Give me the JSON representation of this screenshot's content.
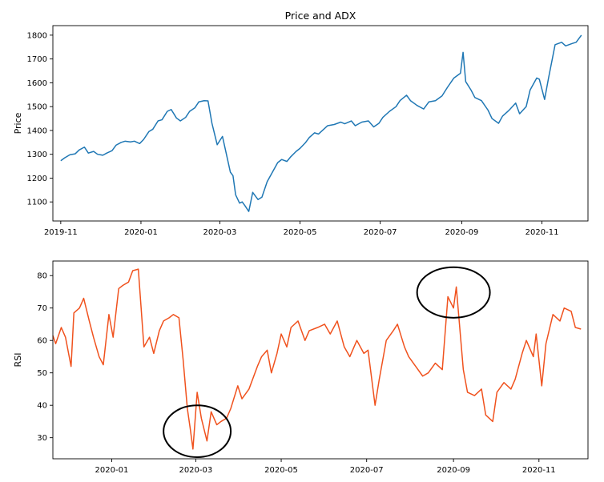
{
  "figure": {
    "background": "#ffffff"
  },
  "chart_data": [
    {
      "type": "line",
      "title": "Price and ADX",
      "xlabel": "",
      "ylabel": "Price",
      "color": "#1f77b4",
      "xlim": [
        "2019-10-26",
        "2020-12-06"
      ],
      "ylim": [
        1020,
        1840
      ],
      "x_ticks": [
        "2019-11-01",
        "2020-01-01",
        "2020-03-01",
        "2020-05-01",
        "2020-07-01",
        "2020-09-01",
        "2020-11-01"
      ],
      "x_tick_labels": [
        "2019-11",
        "2020-01",
        "2020-03",
        "2020-05",
        "2020-07",
        "2020-09",
        "2020-11"
      ],
      "y_ticks": [
        1100,
        1200,
        1300,
        1400,
        1500,
        1600,
        1700,
        1800
      ],
      "grid": false,
      "series": [
        {
          "x": [
            "2019-11-01",
            "2019-11-04",
            "2019-11-08",
            "2019-11-12",
            "2019-11-15",
            "2019-11-19",
            "2019-11-22",
            "2019-11-26",
            "2019-11-29",
            "2019-12-03",
            "2019-12-06",
            "2019-12-10",
            "2019-12-13",
            "2019-12-17",
            "2019-12-20",
            "2019-12-24",
            "2019-12-27",
            "2019-12-31",
            "2020-01-03",
            "2020-01-07",
            "2020-01-10",
            "2020-01-14",
            "2020-01-17",
            "2020-01-21",
            "2020-01-24",
            "2020-01-28",
            "2020-01-31",
            "2020-02-04",
            "2020-02-07",
            "2020-02-11",
            "2020-02-14",
            "2020-02-18",
            "2020-02-21",
            "2020-02-24",
            "2020-02-26",
            "2020-02-28",
            "2020-03-03",
            "2020-03-06",
            "2020-03-09",
            "2020-03-11",
            "2020-03-13",
            "2020-03-16",
            "2020-03-18",
            "2020-03-20",
            "2020-03-23",
            "2020-03-26",
            "2020-03-30",
            "2020-04-02",
            "2020-04-06",
            "2020-04-09",
            "2020-04-14",
            "2020-04-17",
            "2020-04-21",
            "2020-04-24",
            "2020-04-28",
            "2020-05-01",
            "2020-05-05",
            "2020-05-08",
            "2020-05-12",
            "2020-05-15",
            "2020-05-19",
            "2020-05-22",
            "2020-05-27",
            "2020-06-01",
            "2020-06-04",
            "2020-06-09",
            "2020-06-12",
            "2020-06-17",
            "2020-06-22",
            "2020-06-26",
            "2020-06-30",
            "2020-07-03",
            "2020-07-08",
            "2020-07-13",
            "2020-07-16",
            "2020-07-21",
            "2020-07-24",
            "2020-07-29",
            "2020-08-03",
            "2020-08-07",
            "2020-08-12",
            "2020-08-17",
            "2020-08-21",
            "2020-08-26",
            "2020-08-31",
            "2020-09-02",
            "2020-09-04",
            "2020-09-08",
            "2020-09-11",
            "2020-09-16",
            "2020-09-21",
            "2020-09-24",
            "2020-09-29",
            "2020-10-02",
            "2020-10-07",
            "2020-10-12",
            "2020-10-15",
            "2020-10-20",
            "2020-10-23",
            "2020-10-28",
            "2020-10-30",
            "2020-11-03",
            "2020-11-06",
            "2020-11-11",
            "2020-11-16",
            "2020-11-19",
            "2020-11-24",
            "2020-11-27",
            "2020-12-01"
          ],
          "y": [
            1273,
            1285,
            1298,
            1302,
            1318,
            1330,
            1305,
            1312,
            1300,
            1296,
            1305,
            1315,
            1338,
            1350,
            1355,
            1352,
            1355,
            1345,
            1362,
            1395,
            1405,
            1440,
            1445,
            1480,
            1488,
            1452,
            1440,
            1455,
            1480,
            1495,
            1520,
            1525,
            1524,
            1430,
            1385,
            1340,
            1375,
            1300,
            1225,
            1210,
            1130,
            1095,
            1100,
            1085,
            1060,
            1140,
            1110,
            1120,
            1185,
            1215,
            1265,
            1278,
            1270,
            1290,
            1312,
            1325,
            1348,
            1370,
            1390,
            1385,
            1405,
            1420,
            1425,
            1435,
            1428,
            1440,
            1420,
            1435,
            1440,
            1415,
            1430,
            1455,
            1480,
            1500,
            1525,
            1548,
            1525,
            1505,
            1490,
            1520,
            1525,
            1545,
            1580,
            1620,
            1640,
            1728,
            1605,
            1570,
            1538,
            1525,
            1485,
            1450,
            1430,
            1460,
            1485,
            1515,
            1470,
            1500,
            1570,
            1620,
            1615,
            1530,
            1620,
            1760,
            1770,
            1755,
            1765,
            1770,
            1800
          ]
        }
      ]
    },
    {
      "type": "line",
      "title": "",
      "xlabel": "",
      "ylabel": "RSI",
      "color": "#f0521e",
      "xlim": [
        "2019-11-20",
        "2020-12-06"
      ],
      "ylim": [
        23.5,
        84.5
      ],
      "x_ticks": [
        "2020-01-01",
        "2020-03-01",
        "2020-05-01",
        "2020-07-01",
        "2020-09-01",
        "2020-11-01"
      ],
      "x_tick_labels": [
        "2020-01",
        "2020-03",
        "2020-05",
        "2020-07",
        "2020-09",
        "2020-11"
      ],
      "y_ticks": [
        30,
        40,
        50,
        60,
        70,
        80
      ],
      "grid": false,
      "series": [
        {
          "x": [
            "2019-11-20",
            "2019-11-22",
            "2019-11-26",
            "2019-11-29",
            "2019-12-03",
            "2019-12-05",
            "2019-12-09",
            "2019-12-12",
            "2019-12-16",
            "2019-12-19",
            "2019-12-23",
            "2019-12-26",
            "2019-12-30",
            "2020-01-02",
            "2020-01-06",
            "2020-01-09",
            "2020-01-13",
            "2020-01-16",
            "2020-01-20",
            "2020-01-22",
            "2020-01-24",
            "2020-01-28",
            "2020-01-31",
            "2020-02-04",
            "2020-02-07",
            "2020-02-11",
            "2020-02-14",
            "2020-02-18",
            "2020-02-21",
            "2020-02-24",
            "2020-02-26",
            "2020-02-28",
            "2020-03-02",
            "2020-03-05",
            "2020-03-09",
            "2020-03-12",
            "2020-03-16",
            "2020-03-19",
            "2020-03-23",
            "2020-03-26",
            "2020-03-31",
            "2020-04-03",
            "2020-04-08",
            "2020-04-14",
            "2020-04-17",
            "2020-04-21",
            "2020-04-24",
            "2020-04-28",
            "2020-05-01",
            "2020-05-05",
            "2020-05-08",
            "2020-05-13",
            "2020-05-18",
            "2020-05-21",
            "2020-05-27",
            "2020-06-01",
            "2020-06-05",
            "2020-06-10",
            "2020-06-15",
            "2020-06-19",
            "2020-06-24",
            "2020-06-29",
            "2020-07-02",
            "2020-07-07",
            "2020-07-10",
            "2020-07-15",
            "2020-07-20",
            "2020-07-23",
            "2020-07-28",
            "2020-07-31",
            "2020-08-05",
            "2020-08-10",
            "2020-08-14",
            "2020-08-19",
            "2020-08-24",
            "2020-08-28",
            "2020-09-01",
            "2020-09-03",
            "2020-09-08",
            "2020-09-11",
            "2020-09-16",
            "2020-09-21",
            "2020-09-24",
            "2020-09-29",
            "2020-10-02",
            "2020-10-07",
            "2020-10-12",
            "2020-10-15",
            "2020-10-20",
            "2020-10-23",
            "2020-10-28",
            "2020-10-30",
            "2020-11-03",
            "2020-11-06",
            "2020-11-11",
            "2020-11-16",
            "2020-11-19",
            "2020-11-24",
            "2020-11-27",
            "2020-12-01"
          ],
          "y": [
            61.5,
            59,
            64,
            61,
            52,
            68.5,
            70,
            73,
            66,
            61,
            55,
            52.5,
            68,
            61,
            76,
            77,
            78,
            81.5,
            82,
            70,
            58,
            61,
            56,
            63,
            66,
            67,
            68,
            67,
            54,
            39,
            33,
            26.5,
            44,
            36,
            29,
            38,
            34,
            35,
            36,
            39,
            46,
            42,
            45,
            52,
            55,
            57,
            50,
            56,
            62,
            58,
            64,
            66,
            60,
            63,
            64,
            65,
            62,
            66,
            58,
            55,
            60,
            56,
            57,
            40,
            48,
            60,
            63,
            65,
            58,
            55,
            52,
            49,
            50,
            53,
            51,
            73.5,
            70,
            76.5,
            51,
            44,
            43,
            45,
            37,
            35,
            44,
            47,
            45,
            48,
            56,
            60,
            55,
            62,
            46,
            59,
            68,
            66,
            70,
            69,
            64,
            63.5
          ]
        }
      ],
      "annotations": [
        {
          "kind": "ellipse",
          "center_x": "2020-03-02",
          "center_y": 32,
          "rx_days": 24,
          "ry_value": 8
        },
        {
          "kind": "ellipse",
          "center_x": "2020-09-01",
          "center_y": 74.8,
          "rx_days": 26,
          "ry_value": 7.8
        }
      ]
    }
  ]
}
